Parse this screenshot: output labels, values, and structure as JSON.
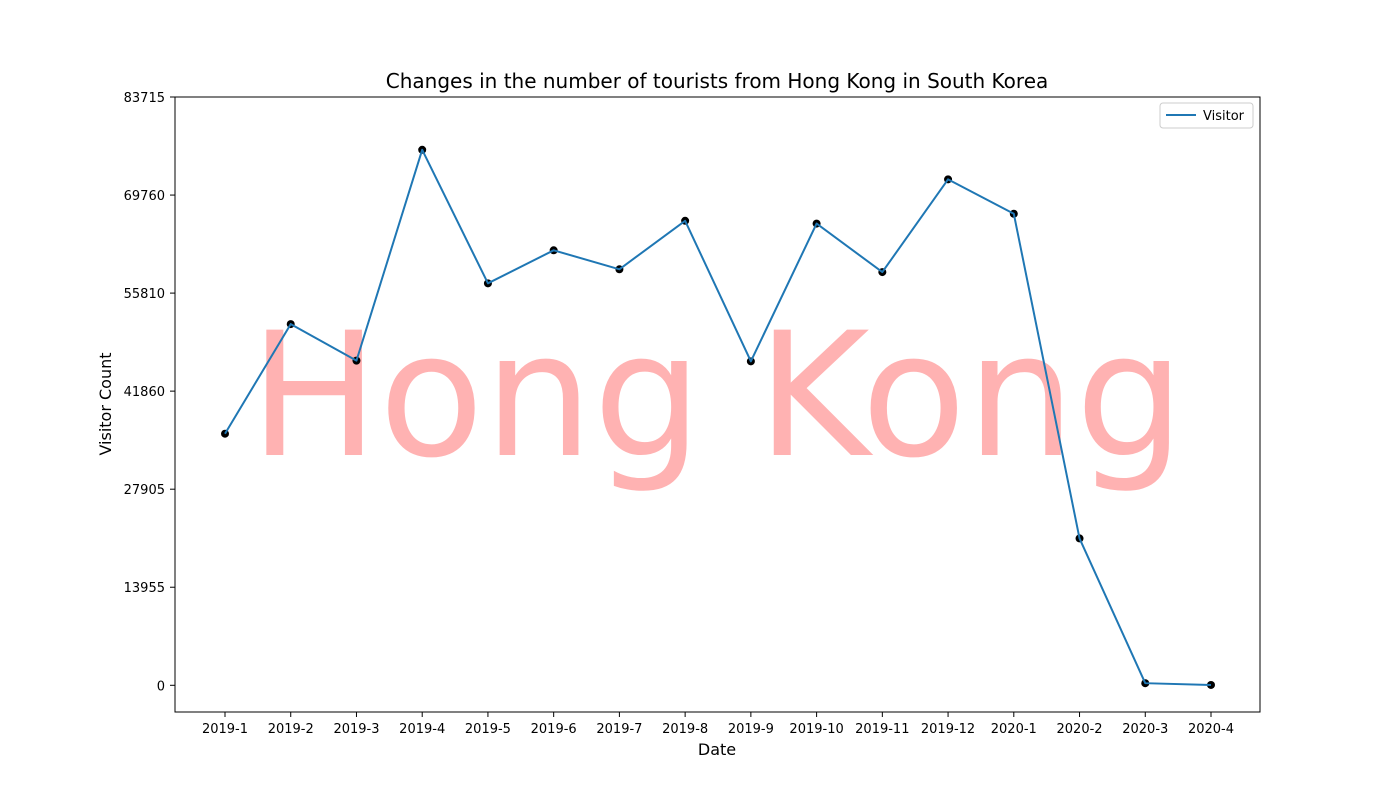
{
  "chart_data": {
    "type": "line",
    "title": "Changes in the number of tourists from Hong Kong in South Korea",
    "xlabel": "Date",
    "ylabel": "Visitor Count",
    "categories": [
      "2019-1",
      "2019-2",
      "2019-3",
      "2019-4",
      "2019-5",
      "2019-6",
      "2019-7",
      "2019-8",
      "2019-9",
      "2019-10",
      "2019-11",
      "2019-12",
      "2020-1",
      "2020-2",
      "2020-3",
      "2020-4"
    ],
    "series": [
      {
        "name": "Visitor",
        "color": "#1f77b4",
        "marker_color": "#000000",
        "values": [
          35800,
          51400,
          46200,
          76200,
          57200,
          61900,
          59200,
          66100,
          46100,
          65700,
          58800,
          72000,
          67100,
          20900,
          300,
          50
        ]
      }
    ],
    "ylim": [
      -3800,
      83715
    ],
    "yticks": [
      0,
      13955,
      27905,
      41860,
      55810,
      69760,
      83715
    ],
    "ytick_labels": [
      "0",
      "13955",
      "27905",
      "41860",
      "55810",
      "69760",
      "83715"
    ],
    "grid": false,
    "legend": {
      "position": "top-right",
      "entries": [
        "Visitor"
      ]
    },
    "watermark": {
      "text": "Hong Kong",
      "color": "#ff0000",
      "opacity": 0.3
    }
  }
}
